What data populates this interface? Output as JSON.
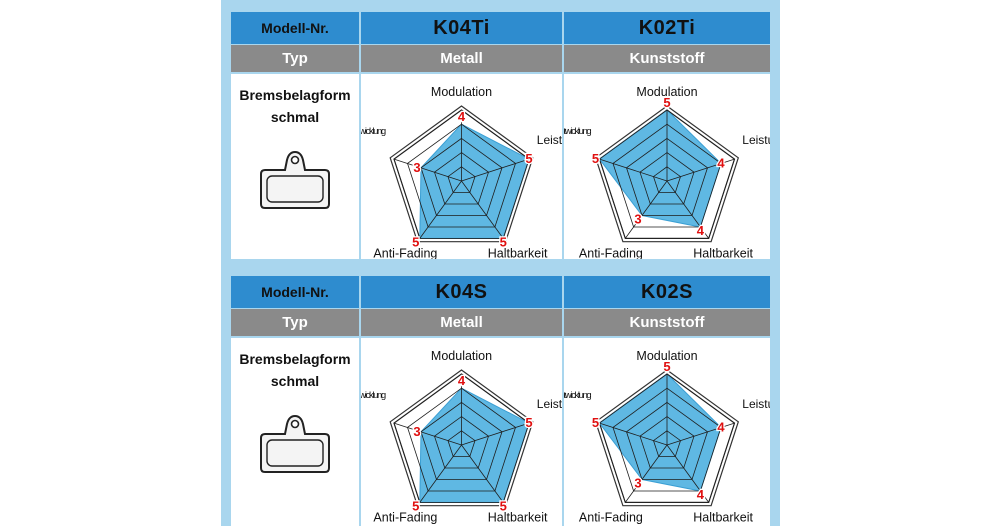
{
  "blocks": [
    {
      "header_label": "Modell-Nr.",
      "type_label": "Typ",
      "shape_label": [
        "Bremsbelagform",
        "schmal"
      ],
      "models": [
        {
          "name": "K04Ti",
          "type": "Metall"
        },
        {
          "name": "K02Ti",
          "type": "Kunststoff"
        }
      ]
    },
    {
      "header_label": "Modell-Nr.",
      "type_label": "Typ",
      "shape_label": [
        "Bremsbelagform",
        "schmal"
      ],
      "models": [
        {
          "name": "K04S",
          "type": "Metall"
        },
        {
          "name": "K02S",
          "type": "Kunststoff"
        }
      ]
    }
  ],
  "colors": {
    "header_blue": "#2e8ccf",
    "type_gray": "#8a8a8a",
    "panel_blue": "#a9d6ee",
    "radar_fill": "#5fb8e3",
    "value_red": "#e01010"
  },
  "chart_data": [
    {
      "type": "radar",
      "model": "K04Ti",
      "axes": [
        "Modulation",
        "Leistung",
        "Haltbarkeit",
        "Anti-Fading",
        "Geräuschentwicklung"
      ],
      "values": [
        4,
        5,
        5,
        5,
        3
      ],
      "max": 5
    },
    {
      "type": "radar",
      "model": "K02Ti",
      "axes": [
        "Modulation",
        "Leistung",
        "Haltbarkeit",
        "Anti-Fading",
        "Geräuschentwicklung"
      ],
      "values": [
        5,
        4,
        4,
        3,
        5
      ],
      "max": 5
    },
    {
      "type": "radar",
      "model": "K04S",
      "axes": [
        "Modulation",
        "Leistung",
        "Haltbarkeit",
        "Anti-Fading",
        "Geräuschentwicklung"
      ],
      "values": [
        4,
        5,
        5,
        5,
        3
      ],
      "max": 5
    },
    {
      "type": "radar",
      "model": "K02S",
      "axes": [
        "Modulation",
        "Leistung",
        "Haltbarkeit",
        "Anti-Fading",
        "Geräuschentwicklung"
      ],
      "values": [
        5,
        4,
        4,
        3,
        5
      ],
      "max": 5
    }
  ]
}
